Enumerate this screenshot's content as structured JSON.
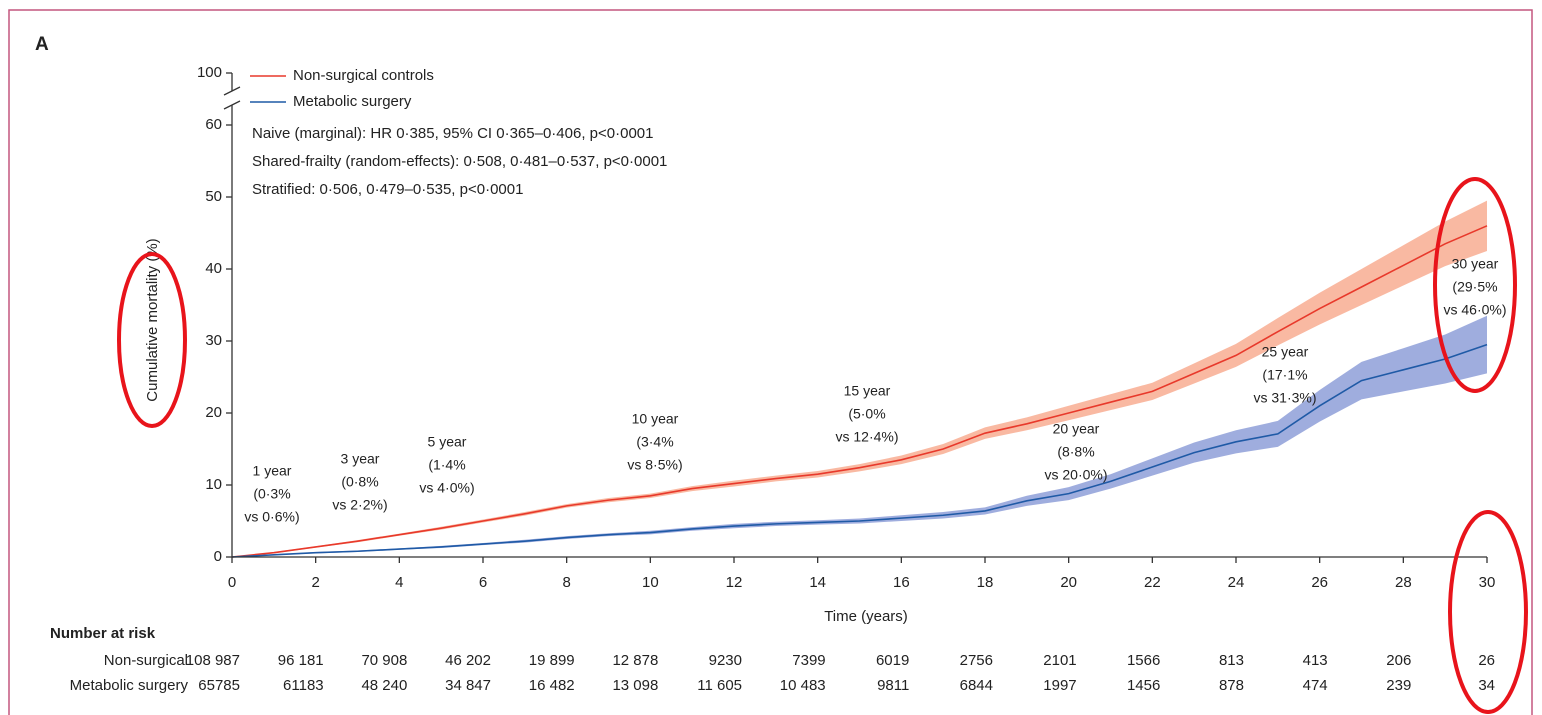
{
  "chart_data": {
    "type": "line",
    "title": "A",
    "xlabel": "Time (years)",
    "ylabel": "Cumulative mortality (%)",
    "x": [
      0,
      1,
      2,
      3,
      4,
      5,
      6,
      7,
      8,
      9,
      10,
      11,
      12,
      13,
      14,
      15,
      16,
      17,
      18,
      19,
      20,
      21,
      22,
      23,
      24,
      25,
      26,
      27,
      28,
      29,
      30
    ],
    "xlim": [
      0,
      30
    ],
    "xticks": [
      0,
      2,
      4,
      6,
      8,
      10,
      12,
      14,
      16,
      18,
      20,
      22,
      24,
      26,
      28,
      30
    ],
    "ylim": [
      0,
      100
    ],
    "yticks": [
      0,
      10,
      20,
      30,
      40,
      50,
      60,
      100
    ],
    "y_break": [
      60,
      100
    ],
    "legend": "upper left",
    "series": [
      {
        "name": "Non-surgical controls",
        "color": "#e8392b",
        "band_color": "#f8ad92",
        "values": [
          0,
          0.6,
          1.4,
          2.2,
          3.1,
          4.0,
          5.0,
          6.0,
          7.1,
          7.9,
          8.5,
          9.5,
          10.2,
          10.9,
          11.5,
          12.4,
          13.5,
          15.0,
          17.2,
          18.5,
          20.0,
          21.5,
          23.0,
          25.5,
          28.0,
          31.3,
          34.5,
          37.5,
          40.5,
          43.5,
          46.0
        ],
        "ci_lower": [
          0,
          0.5,
          1.3,
          2.05,
          2.95,
          3.8,
          4.8,
          5.75,
          6.85,
          7.6,
          8.2,
          9.15,
          9.8,
          10.5,
          11.05,
          11.9,
          12.9,
          14.3,
          16.4,
          17.6,
          19.0,
          20.4,
          21.8,
          24.1,
          26.4,
          29.4,
          32.3,
          35.0,
          37.7,
          40.4,
          42.5
        ],
        "ci_upper": [
          0,
          0.7,
          1.5,
          2.35,
          3.25,
          4.2,
          5.2,
          6.25,
          7.35,
          8.2,
          8.8,
          9.85,
          10.6,
          11.3,
          11.95,
          12.9,
          14.1,
          15.7,
          18.0,
          19.4,
          21.0,
          22.6,
          24.2,
          26.9,
          29.6,
          33.2,
          36.7,
          40.0,
          43.3,
          46.6,
          49.5
        ]
      },
      {
        "name": "Metabolic surgery",
        "color": "#1f5aa6",
        "band_color": "#8e9fd8",
        "values": [
          0,
          0.3,
          0.6,
          0.8,
          1.1,
          1.4,
          1.8,
          2.2,
          2.7,
          3.1,
          3.4,
          3.9,
          4.3,
          4.6,
          4.8,
          5.0,
          5.4,
          5.8,
          6.4,
          7.8,
          8.8,
          10.5,
          12.5,
          14.5,
          16.0,
          17.1,
          21.0,
          24.5,
          26.0,
          27.5,
          29.5
        ],
        "ci_lower": [
          0,
          0.25,
          0.5,
          0.7,
          1.0,
          1.25,
          1.65,
          2.0,
          2.5,
          2.9,
          3.15,
          3.65,
          4.0,
          4.3,
          4.5,
          4.65,
          5.0,
          5.35,
          5.9,
          7.1,
          7.9,
          9.5,
          11.3,
          13.1,
          14.4,
          15.3,
          18.8,
          21.9,
          23.0,
          24.1,
          25.5
        ],
        "ci_upper": [
          0,
          0.35,
          0.7,
          0.9,
          1.2,
          1.55,
          1.95,
          2.4,
          2.9,
          3.3,
          3.65,
          4.15,
          4.6,
          4.9,
          5.1,
          5.35,
          5.8,
          6.25,
          6.9,
          8.5,
          9.7,
          11.5,
          13.7,
          15.9,
          17.6,
          18.9,
          23.2,
          27.1,
          29.0,
          30.9,
          33.5
        ]
      }
    ],
    "stats_text": [
      "Naive (marginal): HR 0·385, 95% CI 0·365–0·406, p<0·0001",
      "Shared-frailty (random-effects): 0·508, 0·481–0·537, p<0·0001",
      "Stratified: 0·506, 0·479–0·535, p<0·0001"
    ],
    "annotations": [
      {
        "lines": [
          "1 year",
          "(0·3%",
          "vs 0·6%)"
        ]
      },
      {
        "lines": [
          "3 year",
          "(0·8%",
          "vs 2·2%)"
        ]
      },
      {
        "lines": [
          "5 year",
          "(1·4%",
          "vs 4·0%)"
        ]
      },
      {
        "lines": [
          "10 year",
          "(3·4%",
          "vs 8·5%)"
        ]
      },
      {
        "lines": [
          "15 year",
          "(5·0%",
          "vs 12·4%)"
        ]
      },
      {
        "lines": [
          "20 year",
          "(8·8%",
          "vs 20·0%)"
        ]
      },
      {
        "lines": [
          "25 year",
          "(17·1%",
          "vs 31·3%)"
        ]
      },
      {
        "lines": [
          "30 year",
          "(29·5%",
          "vs 46·0%)"
        ]
      }
    ],
    "risk_table": {
      "title": "Number at risk",
      "rows": [
        {
          "label": "Non-surgical",
          "values": [
            108987,
            96181,
            70908,
            46202,
            19899,
            12878,
            9230,
            7399,
            6019,
            2756,
            2101,
            1566,
            813,
            413,
            206,
            26
          ],
          "value_labels": [
            "108 987",
            "96 181",
            "70 908",
            "46 202",
            "19 899",
            "12 878",
            "9230",
            "7399",
            "6019",
            "2756",
            "2101",
            "1566",
            "813",
            "413",
            "206",
            "26"
          ]
        },
        {
          "label": "Metabolic surgery",
          "values": [
            65785,
            61183,
            48240,
            34847,
            16482,
            13098,
            11605,
            10483,
            9811,
            6844,
            1997,
            1456,
            878,
            474,
            239,
            34
          ],
          "value_labels": [
            "65785",
            "61183",
            "48 240",
            "34 847",
            "16 482",
            "13 098",
            "11 605",
            "10 483",
            "9811",
            "6844",
            "1997",
            "1456",
            "878",
            "474",
            "239",
            "34"
          ]
        }
      ]
    }
  }
}
